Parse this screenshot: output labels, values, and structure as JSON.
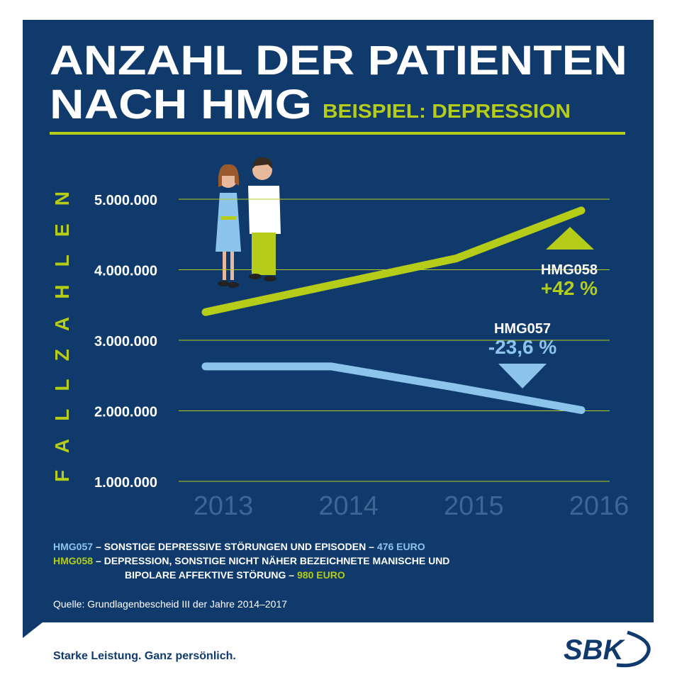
{
  "chart_data": {
    "type": "line",
    "title_lines": [
      "ANZAHL DER PATIENTEN",
      "NACH HMG"
    ],
    "subtitle": "BEISPIEL: DEPRESSION",
    "y_label": "FALLZAHLEN",
    "categories": [
      "2013",
      "2014",
      "2015",
      "2016"
    ],
    "series": [
      {
        "name": "HMG058",
        "color": "#b5cc18",
        "values": [
          3400000,
          3780000,
          4160000,
          4840000
        ],
        "description_lines": [
          "– DEPRESSION, SONSTIGE NICHT NÄHER BEZEICHNETE MANISCHE UND",
          "BIPOLARE AFFEKTIVE STÖRUNG –"
        ],
        "cost": "980 EURO"
      },
      {
        "name": "HMG057",
        "color": "#8cc4ec",
        "values": [
          2630000,
          2630000,
          2330000,
          2010000
        ],
        "description_lines": [
          "– SONSTIGE DEPRESSIVE STÖRUNGEN UND EPISODEN –"
        ],
        "cost": "476 EURO"
      }
    ],
    "annotations": [
      {
        "label": "HMG058",
        "text": "+42 %"
      },
      {
        "label": "HMG057",
        "text": "-23,6 %"
      }
    ],
    "ylim": [
      1000000,
      5000000
    ],
    "yticks": [
      {
        "value": 1000000,
        "label": "1.000.000"
      },
      {
        "value": 2000000,
        "label": "2.000.000"
      },
      {
        "value": 3000000,
        "label": "3.000.000"
      },
      {
        "value": 4000000,
        "label": "4.000.000"
      },
      {
        "value": 5000000,
        "label": "5.000.000"
      }
    ],
    "grid": true,
    "source": "Quelle: Grundlagenbescheid III der Jahre 2014–2017",
    "footer": "Starke Leistung. Ganz persönlich.",
    "logo": "SBK"
  }
}
